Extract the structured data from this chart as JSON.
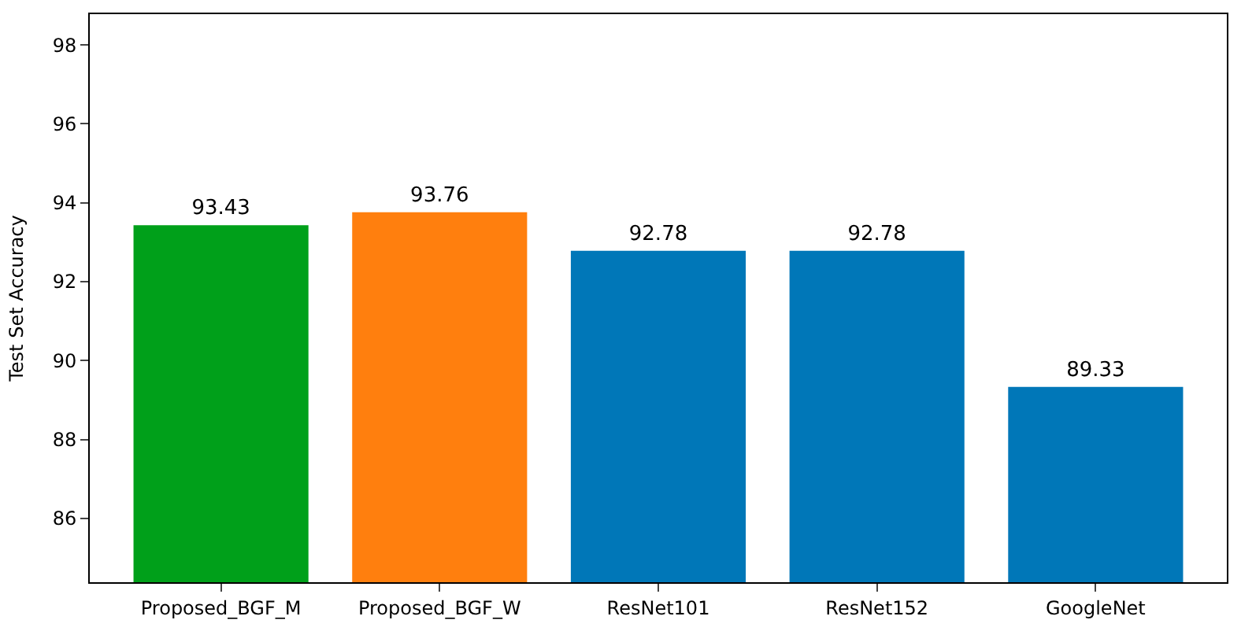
{
  "chart_data": {
    "type": "bar",
    "ylabel": "Test Set Accuracy",
    "categories": [
      "Proposed_BGF_M",
      "Proposed_BGF_W",
      "ResNet101",
      "ResNet152",
      "GoogleNet"
    ],
    "values": [
      93.43,
      93.76,
      92.78,
      92.78,
      89.33
    ],
    "colors": [
      "#00a01a",
      "#ff7f0e",
      "#0077b8",
      "#0077b8",
      "#0077b8"
    ],
    "ylim": [
      84.38,
      98.78
    ],
    "yticks": [
      86,
      88,
      90,
      92,
      94,
      96,
      98
    ],
    "data_labels": true
  }
}
